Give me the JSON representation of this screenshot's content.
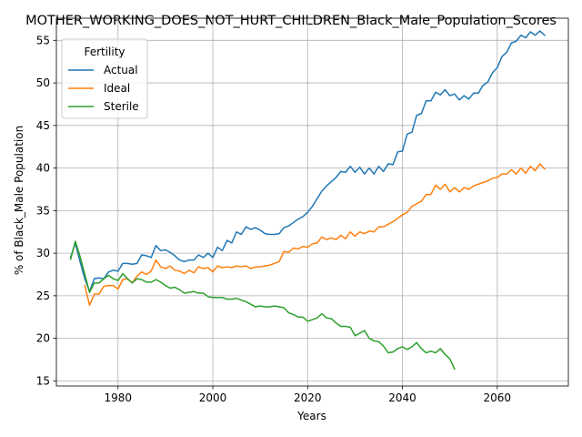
{
  "chart_data": {
    "type": "line",
    "title": "MOTHER_WORKING_DOES_NOT_HURT_CHILDREN_Black_Male_Population_Scores",
    "xlabel": "Years",
    "ylabel": "% of Black_Male Population",
    "xlim": [
      1967,
      2075
    ],
    "ylim": [
      14.4,
      57.6
    ],
    "xticks": [
      1980,
      2000,
      2020,
      2040,
      2060
    ],
    "yticks": [
      15,
      20,
      25,
      30,
      35,
      40,
      45,
      50,
      55
    ],
    "grid": true,
    "legend": {
      "title": "Fertility",
      "position": "top-left"
    },
    "series": [
      {
        "name": "Actual",
        "color": "#1f77b4",
        "x": [
          1970,
          1971,
          1972,
          1973,
          1974,
          1975,
          1976,
          1977,
          1978,
          1979,
          1980,
          1981,
          1982,
          1983,
          1984,
          1985,
          1986,
          1987,
          1988,
          1989,
          1990,
          1991,
          1992,
          1993,
          1994,
          1995,
          1996,
          1997,
          1998,
          1999,
          2000,
          2001,
          2002,
          2003,
          2004,
          2005,
          2006,
          2007,
          2008,
          2009,
          2010,
          2011,
          2012,
          2013,
          2014,
          2015,
          2016,
          2017,
          2018,
          2019,
          2020,
          2021,
          2022,
          2023,
          2024,
          2025,
          2026,
          2027,
          2028,
          2029,
          2030,
          2031,
          2032,
          2033,
          2034,
          2035,
          2036,
          2037,
          2038,
          2039,
          2040,
          2041,
          2042,
          2043,
          2044,
          2045,
          2046,
          2047,
          2048,
          2049,
          2050,
          2051,
          2052,
          2053,
          2054,
          2055,
          2056,
          2057,
          2058,
          2059,
          2060,
          2061,
          2062,
          2063,
          2064,
          2065,
          2066,
          2067,
          2068,
          2069,
          2070
        ],
        "values": [
          29.5,
          31.2,
          29.0,
          27.0,
          25.5,
          27.0,
          27.1,
          27.0,
          27.8,
          28.0,
          27.9,
          28.8,
          28.8,
          28.7,
          28.8,
          29.8,
          29.7,
          29.5,
          30.9,
          30.3,
          30.4,
          30.1,
          29.7,
          29.2,
          29.0,
          29.2,
          29.2,
          29.8,
          29.5,
          30.0,
          29.5,
          30.7,
          30.3,
          31.5,
          31.2,
          32.5,
          32.2,
          33.1,
          32.8,
          33.0,
          32.7,
          32.3,
          32.2,
          32.2,
          32.3,
          33.0,
          33.2,
          33.6,
          34.0,
          34.3,
          34.8,
          35.5,
          36.4,
          37.3,
          37.9,
          38.4,
          38.9,
          39.6,
          39.5,
          40.2,
          39.5,
          40.1,
          39.3,
          40.0,
          39.3,
          40.2,
          39.6,
          40.5,
          40.4,
          41.9,
          42.0,
          44.0,
          44.2,
          46.2,
          46.4,
          47.9,
          47.9,
          48.9,
          48.6,
          49.2,
          48.5,
          48.7,
          48.0,
          48.5,
          48.1,
          48.8,
          48.8,
          49.7,
          50.1,
          51.2,
          51.8,
          53.1,
          53.6,
          54.7,
          54.9,
          55.6,
          55.3,
          56.0,
          55.6,
          56.1,
          55.6
        ]
      },
      {
        "name": "Ideal",
        "color": "#ff7f0e",
        "x": [
          1973,
          1974,
          1975,
          1976,
          1977,
          1978,
          1979,
          1980,
          1981,
          1982,
          1983,
          1984,
          1985,
          1986,
          1987,
          1988,
          1989,
          1990,
          1991,
          1992,
          1993,
          1994,
          1995,
          1996,
          1997,
          1998,
          1999,
          2000,
          2001,
          2002,
          2003,
          2004,
          2005,
          2006,
          2007,
          2008,
          2009,
          2010,
          2011,
          2012,
          2013,
          2014,
          2015,
          2016,
          2017,
          2018,
          2019,
          2020,
          2021,
          2022,
          2023,
          2024,
          2025,
          2026,
          2027,
          2028,
          2029,
          2030,
          2031,
          2032,
          2033,
          2034,
          2035,
          2036,
          2037,
          2038,
          2039,
          2040,
          2041,
          2042,
          2043,
          2044,
          2045,
          2046,
          2047,
          2048,
          2049,
          2050,
          2051,
          2052,
          2053,
          2054,
          2055,
          2056,
          2057,
          2058,
          2059,
          2060,
          2061,
          2062,
          2063,
          2064,
          2065,
          2066,
          2067,
          2068,
          2069,
          2070
        ],
        "values": [
          26.2,
          23.9,
          25.2,
          25.2,
          26.1,
          26.2,
          26.2,
          25.8,
          26.9,
          27.0,
          26.5,
          27.3,
          27.8,
          27.5,
          27.9,
          29.2,
          28.4,
          28.2,
          28.5,
          28.0,
          27.9,
          27.6,
          28.0,
          27.7,
          28.4,
          28.2,
          28.3,
          27.8,
          28.5,
          28.3,
          28.4,
          28.3,
          28.5,
          28.4,
          28.5,
          28.2,
          28.4,
          28.4,
          28.5,
          28.6,
          28.8,
          29.0,
          30.2,
          30.1,
          30.6,
          30.5,
          30.8,
          30.7,
          31.1,
          31.2,
          31.9,
          31.6,
          31.8,
          31.6,
          32.1,
          31.7,
          32.5,
          32.0,
          32.5,
          32.3,
          32.6,
          32.5,
          33.1,
          33.1,
          33.4,
          33.7,
          34.1,
          34.5,
          34.8,
          35.5,
          35.8,
          36.1,
          36.9,
          36.9,
          38.0,
          37.5,
          38.1,
          37.2,
          37.7,
          37.2,
          37.7,
          37.5,
          37.9,
          38.1,
          38.3,
          38.5,
          38.8,
          38.9,
          39.3,
          39.3,
          39.8,
          39.3,
          40.0,
          39.4,
          40.2,
          39.7,
          40.5,
          39.9
        ]
      },
      {
        "name": "Sterile",
        "color": "#2ca02c",
        "x": [
          1970,
          1971,
          1972,
          1973,
          1974,
          1975,
          1976,
          1977,
          1978,
          1979,
          1980,
          1981,
          1982,
          1983,
          1984,
          1985,
          1986,
          1987,
          1988,
          1989,
          1990,
          1991,
          1992,
          1993,
          1994,
          1995,
          1996,
          1997,
          1998,
          1999,
          2000,
          2001,
          2002,
          2003,
          2004,
          2005,
          2006,
          2007,
          2008,
          2009,
          2010,
          2011,
          2012,
          2013,
          2014,
          2015,
          2016,
          2017,
          2018,
          2019,
          2020,
          2021,
          2022,
          2023,
          2024,
          2025,
          2026,
          2027,
          2028,
          2029,
          2030,
          2031,
          2032,
          2033,
          2034,
          2035,
          2036,
          2037,
          2038,
          2039,
          2040,
          2041,
          2042,
          2043,
          2044,
          2045,
          2046,
          2047,
          2048,
          2049,
          2050,
          2051
        ],
        "values": [
          29.3,
          31.4,
          29.6,
          27.5,
          25.4,
          26.5,
          26.5,
          27.0,
          27.4,
          27.0,
          26.8,
          27.6,
          27.0,
          26.5,
          27.0,
          26.9,
          26.6,
          26.6,
          26.9,
          26.6,
          26.2,
          25.9,
          26.0,
          25.7,
          25.3,
          25.4,
          25.5,
          25.3,
          25.3,
          24.9,
          24.8,
          24.8,
          24.8,
          24.6,
          24.6,
          24.7,
          24.5,
          24.3,
          24.0,
          23.7,
          23.8,
          23.7,
          23.7,
          23.8,
          23.7,
          23.6,
          23.0,
          22.8,
          22.5,
          22.5,
          22.0,
          22.2,
          22.4,
          22.9,
          22.4,
          22.3,
          21.8,
          21.4,
          21.4,
          21.3,
          20.3,
          20.6,
          20.9,
          20.0,
          19.7,
          19.6,
          19.1,
          18.3,
          18.4,
          18.8,
          19.0,
          18.7,
          19.0,
          19.5,
          18.8,
          18.3,
          18.5,
          18.3,
          18.8,
          18.1,
          17.6,
          16.4
        ]
      }
    ]
  }
}
